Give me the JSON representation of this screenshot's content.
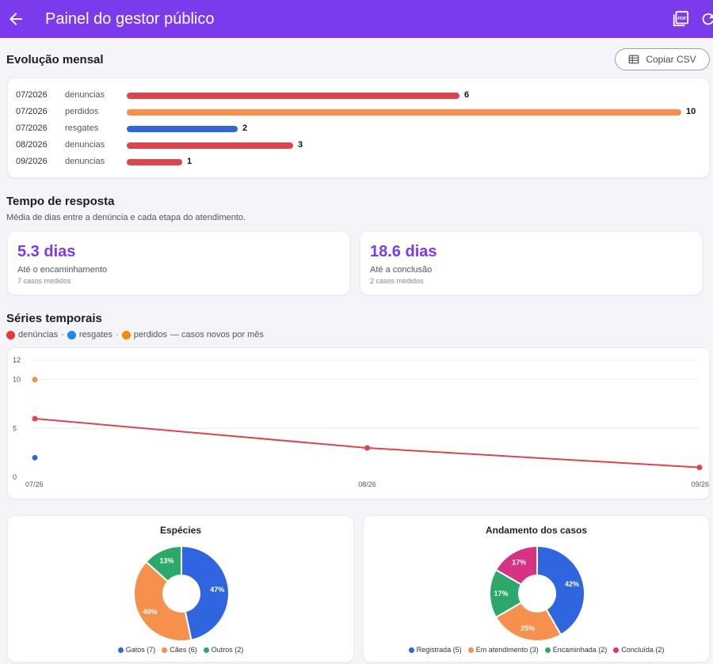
{
  "appbar": {
    "title": "Painel do gestor público",
    "back_icon": "arrow-left-icon",
    "pdf_icon": "pdf-icon",
    "refresh_icon": "refresh-icon"
  },
  "monthly": {
    "title": "Evolução mensal",
    "copy_csv_label": "Copiar CSV",
    "max": 10,
    "rows": [
      {
        "month": "07/2026",
        "category": "denuncias",
        "value": 6,
        "color": "#e0434b"
      },
      {
        "month": "07/2026",
        "category": "perdidos",
        "value": 10,
        "color": "#f6914d"
      },
      {
        "month": "07/2026",
        "category": "resgates",
        "value": 2,
        "color": "#2f66e0"
      },
      {
        "month": "08/2026",
        "category": "denuncias",
        "value": 3,
        "color": "#e0434b"
      },
      {
        "month": "09/2026",
        "category": "denuncias",
        "value": 1,
        "color": "#e0434b"
      }
    ]
  },
  "response": {
    "title": "Tempo de resposta",
    "subtitle": "Média de dias entre a denúncia e cada etapa do atendimento.",
    "metrics": [
      {
        "value": "5.3 dias",
        "label": "Até o encaminhamento",
        "note": "7 casos medidos"
      },
      {
        "value": "18.6 dias",
        "label": "Até a conclusão",
        "note": "2 casos medidos"
      }
    ]
  },
  "series_section": {
    "title": "Séries temporais",
    "legend": [
      {
        "label": "denúncias",
        "color": "#e53935"
      },
      {
        "label": "resgates",
        "color": "#1e88e5"
      },
      {
        "label": "perdidos",
        "color": "#fb8c00"
      }
    ],
    "legend_suffix": "— casos novos por mês",
    "sep": "·"
  },
  "chart_data": [
    {
      "type": "line",
      "categories": [
        "07/26",
        "08/26",
        "09/26"
      ],
      "yticks": [
        0,
        5,
        10,
        12
      ],
      "ylim": [
        0,
        12
      ],
      "grid": true,
      "series": [
        {
          "name": "denúncias",
          "values": [
            6,
            3,
            1
          ],
          "color": "#e0434b"
        },
        {
          "name": "resgates",
          "values": [
            2,
            null,
            null
          ],
          "color": "#2f66e0"
        },
        {
          "name": "perdidos",
          "values": [
            10,
            null,
            null
          ],
          "color": "#f6914d"
        }
      ]
    },
    {
      "type": "pie",
      "title": "Espécies",
      "slices": [
        {
          "label": "Gatos",
          "value": 7,
          "pct": "47%",
          "color": "#2f66e0"
        },
        {
          "label": "Cães",
          "value": 6,
          "pct": "40%",
          "color": "#f6914d"
        },
        {
          "label": "Outros",
          "value": 2,
          "pct": "13%",
          "color": "#2aa96b"
        }
      ],
      "legend": [
        "Gatos (7)",
        "Cães (6)",
        "Outros (2)"
      ]
    },
    {
      "type": "pie",
      "title": "Andamento dos casos",
      "slices": [
        {
          "label": "Registrada",
          "value": 5,
          "pct": "42%",
          "color": "#2f66e0"
        },
        {
          "label": "Em atendimento",
          "value": 3,
          "pct": "25%",
          "color": "#f6914d"
        },
        {
          "label": "Encaminhada",
          "value": 2,
          "pct": "17%",
          "color": "#2aa96b"
        },
        {
          "label": "Concluída",
          "value": 2,
          "pct": "17%",
          "color": "#d63384"
        }
      ],
      "legend": [
        "Registrada (5)",
        "Em atendimento (3)",
        "Encaminhada (2)",
        "Concluída (2)"
      ]
    }
  ]
}
